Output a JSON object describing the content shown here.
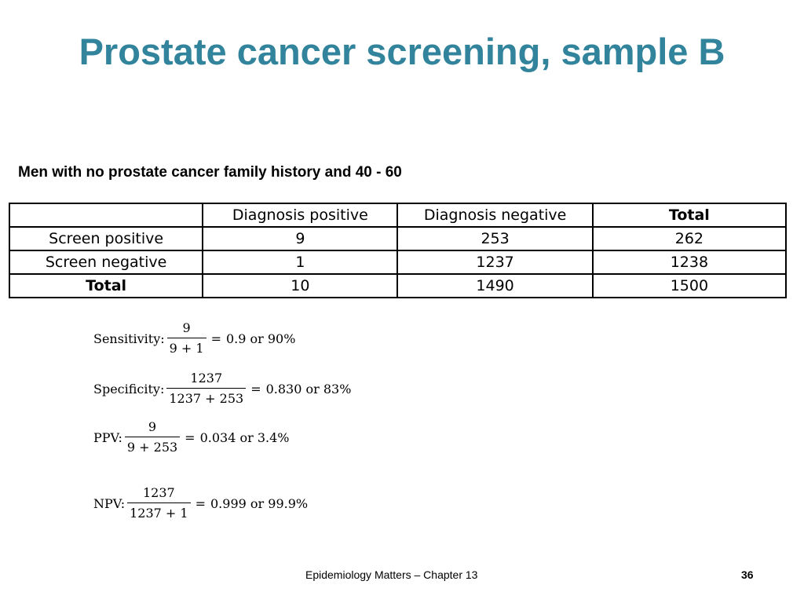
{
  "title": "Prostate cancer screening, sample B",
  "subtitle": "Men with no prostate cancer family history and 40 - 60",
  "table": {
    "header": [
      "",
      "Diagnosis positive",
      "Diagnosis negative",
      "Total"
    ],
    "rows": [
      [
        "Screen positive",
        "9",
        "253",
        "262"
      ],
      [
        "Screen negative",
        "1",
        "1237",
        "1238"
      ],
      [
        "Total",
        "10",
        "1490",
        "1500"
      ]
    ]
  },
  "formulas": {
    "sensitivity": {
      "label": "Sensitivity:",
      "numerator": "9",
      "denominator": "9 + 1",
      "equals": "=",
      "result": "0.9 or 90%"
    },
    "specificity": {
      "label": "Specificity:",
      "numerator": "1237",
      "denominator": "1237 + 253",
      "equals": "=",
      "result": "0.830 or 83%"
    },
    "ppv": {
      "label": "PPV:",
      "numerator": "9",
      "denominator": "9 + 253",
      "equals": "=",
      "result": "0.034 or 3.4%"
    },
    "npv": {
      "label": "NPV:",
      "numerator": "1237",
      "denominator": "1237 + 1",
      "equals": "=",
      "result": "0.999 or 99.9%"
    }
  },
  "footer": {
    "text": "Epidemiology Matters – Chapter 13",
    "page": "36"
  },
  "colors": {
    "title": "#31849b"
  }
}
